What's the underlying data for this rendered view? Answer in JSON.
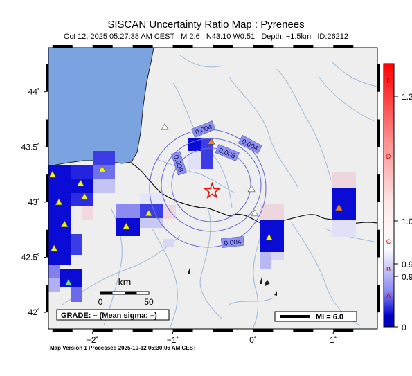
{
  "header": {
    "title": "SISCAN Uncertainty Ratio Map : Pyrenees",
    "subtitle": "Oct 12, 2025 05:27:38 AM CEST   M 2.6   N43.10 W0.51   Depth: −1.5km   ID:26212"
  },
  "map": {
    "lat_ticks": [
      {
        "value": 44,
        "label": "44˚"
      },
      {
        "value": 43.5,
        "label": "43.5˚"
      },
      {
        "value": 43,
        "label": "43˚"
      },
      {
        "value": 42.5,
        "label": "42.5˚"
      },
      {
        "value": 42,
        "label": "42˚"
      }
    ],
    "lon_ticks": [
      {
        "value": -2,
        "label": "−2˚"
      },
      {
        "value": -1,
        "label": "−1˚"
      },
      {
        "value": 0,
        "label": "0˚"
      },
      {
        "value": 1,
        "label": "1˚"
      }
    ],
    "lon_range": [
      -2.55,
      1.55
    ],
    "lat_range": [
      41.85,
      44.4
    ],
    "epicenter": {
      "lon": -0.51,
      "lat": 43.1,
      "icon": "star-icon"
    },
    "contours": [
      {
        "label": "0.004"
      },
      {
        "label": "0.004"
      },
      {
        "label": "0.004"
      },
      {
        "label": "0.008"
      },
      {
        "label": "0.008"
      }
    ],
    "scale_bar": {
      "unit": "km",
      "zero": "0",
      "max": "50"
    },
    "grade_box": "GRADE: – (Mean sigma: –)",
    "mi_box": "MI = 6.0",
    "stations": [
      {
        "lon": -0.52,
        "lat": 43.55,
        "color": "#ff7a1a"
      },
      {
        "lon": 1.07,
        "lat": 42.95,
        "color": "#ff7a1a"
      },
      {
        "lon": -2.5,
        "lat": 43.25,
        "color": "#f2f20a"
      },
      {
        "lon": -2.15,
        "lat": 43.17,
        "color": "#f2f20a"
      },
      {
        "lon": -1.88,
        "lat": 43.3,
        "color": "#f2f20a"
      },
      {
        "lon": -2.42,
        "lat": 43.0,
        "color": "#f2f20a"
      },
      {
        "lon": -2.1,
        "lat": 43.05,
        "color": "#f2f20a"
      },
      {
        "lon": -2.35,
        "lat": 42.8,
        "color": "#f2f20a"
      },
      {
        "lon": -2.48,
        "lat": 42.58,
        "color": "#f2f20a"
      },
      {
        "lon": -1.58,
        "lat": 42.78,
        "color": "#f2f20a"
      },
      {
        "lon": -1.3,
        "lat": 42.9,
        "color": "#f2f20a"
      },
      {
        "lon": 0.2,
        "lat": 42.68,
        "color": "#f2f20a"
      },
      {
        "lon": -2.3,
        "lat": 42.27,
        "color": "#66e09a"
      },
      {
        "lon": -1.1,
        "lat": 43.68,
        "color": "#ffffff"
      },
      {
        "lon": -0.02,
        "lat": 43.12,
        "color": "#ffffff"
      },
      {
        "lon": 0.02,
        "lat": 42.9,
        "color": "#ffffff"
      }
    ]
  },
  "colorbar": {
    "grades": [
      "F",
      "D",
      "C",
      "B",
      "A"
    ],
    "values": [
      "1.2",
      "1.0",
      "0.9",
      "0.9",
      "0"
    ]
  },
  "footer": "Map Version 1 Processed 2025-10-12 05:30:06 AM CEST",
  "colors": {
    "ocean": "#7ba3df",
    "land": "#eeeeee",
    "rivers": "#9ab8dd",
    "contour": "#6a70d8",
    "cell_high": "#0b0bd6"
  }
}
